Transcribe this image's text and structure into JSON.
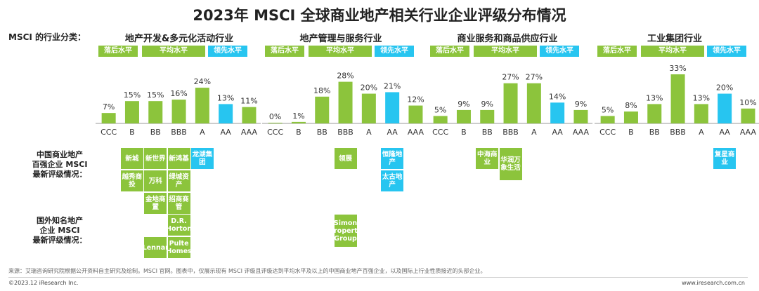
{
  "title": "2023年 MSCI 全球商业地产相关行业企业评级分布情况",
  "category_label": "MSCI 的行业分类：",
  "level_labels": {
    "lagging": "落后水平",
    "average": "平均水平",
    "leading": "领先水平"
  },
  "row_labels": {
    "china": "中国商业地产\n百强企业 MSCI\n最新评级情况：",
    "intl": "国外知名地产\n企业 MSCI\n最新评级情况："
  },
  "colors": {
    "green": "#8cc43c",
    "blue": "#27c5f0"
  },
  "chart_data": [
    {
      "type": "bar",
      "title": "地产开发&多元化活动行业",
      "categories": [
        "CCC",
        "B",
        "BB",
        "BBB",
        "A",
        "AA",
        "AAA"
      ],
      "values": [
        7,
        15,
        15,
        16,
        24,
        13,
        11
      ],
      "value_labels": [
        "7%",
        "15%",
        "15%",
        "16%",
        "24%",
        "13%",
        "11%"
      ],
      "ylim": [
        0,
        30
      ]
    },
    {
      "type": "bar",
      "title": "地产管理与服务行业",
      "categories": [
        "CCC",
        "B",
        "BB",
        "BBB",
        "A",
        "AA",
        "AAA"
      ],
      "values": [
        0,
        1,
        18,
        28,
        20,
        21,
        12
      ],
      "value_labels": [
        "0%",
        "1%",
        "18%",
        "28%",
        "20%",
        "21%",
        "12%"
      ],
      "ylim": [
        0,
        30
      ]
    },
    {
      "type": "bar",
      "title": "商业服务和商品供应行业",
      "categories": [
        "CCC",
        "B",
        "BB",
        "BBB",
        "A",
        "AA",
        "AAA"
      ],
      "values": [
        5,
        9,
        9,
        27,
        27,
        14,
        9
      ],
      "value_labels": [
        "5%",
        "9%",
        "9%",
        "27%",
        "27%",
        "14%",
        "9%"
      ],
      "ylim": [
        0,
        30
      ]
    },
    {
      "type": "bar",
      "title": "工业集团行业",
      "categories": [
        "CCC",
        "B",
        "BB",
        "BBB",
        "A",
        "AA",
        "AAA"
      ],
      "values": [
        5,
        8,
        13,
        33,
        13,
        20,
        10
      ],
      "value_labels": [
        "5%",
        "8%",
        "13%",
        "33%",
        "13%",
        "20%",
        "10%"
      ],
      "ylim": [
        0,
        33
      ]
    }
  ],
  "china_companies": [
    {
      "name": "新城",
      "panel": 0,
      "col": 1,
      "row": 0,
      "color": "green"
    },
    {
      "name": "新世界",
      "panel": 0,
      "col": 2,
      "row": 0,
      "color": "green"
    },
    {
      "name": "新鸿基",
      "panel": 0,
      "col": 3,
      "row": 0,
      "color": "green"
    },
    {
      "name": "龙湖集团",
      "panel": 0,
      "col": 4,
      "row": 0,
      "color": "blue"
    },
    {
      "name": "越秀商投",
      "panel": 0,
      "col": 1,
      "row": 1,
      "color": "green"
    },
    {
      "name": "万科",
      "panel": 0,
      "col": 2,
      "row": 1,
      "color": "green"
    },
    {
      "name": "绿城资产",
      "panel": 0,
      "col": 3,
      "row": 1,
      "color": "green"
    },
    {
      "name": "金地商置",
      "panel": 0,
      "col": 2,
      "row": 2,
      "color": "green"
    },
    {
      "name": "招商商管",
      "panel": 0,
      "col": 3,
      "row": 2,
      "color": "green"
    },
    {
      "name": "领展",
      "panel": 1,
      "col": 3,
      "row": 0,
      "color": "green"
    },
    {
      "name": "恒隆地产",
      "panel": 1,
      "col": 5,
      "row": 0,
      "color": "blue"
    },
    {
      "name": "太古地产",
      "panel": 1,
      "col": 5,
      "row": 1,
      "color": "blue"
    },
    {
      "name": "中海商业",
      "panel": 2,
      "col": 2,
      "row": 0,
      "color": "green"
    },
    {
      "name": "华润万象生活",
      "panel": 2,
      "col": 3,
      "row": 0,
      "color": "green",
      "tall": true
    },
    {
      "name": "复星商业",
      "panel": 3,
      "col": 5,
      "row": 0,
      "color": "blue"
    }
  ],
  "intl_companies": [
    {
      "name": "D.R. Horton",
      "panel": 0,
      "col": 3,
      "row": 0,
      "color": "green"
    },
    {
      "name": "Lennar",
      "panel": 0,
      "col": 2,
      "row": 1,
      "color": "green"
    },
    {
      "name": "Pulte Homes",
      "panel": 0,
      "col": 3,
      "row": 1,
      "color": "green"
    },
    {
      "name": "Simon Property Group",
      "panel": 1,
      "col": 3,
      "row": 0,
      "color": "green",
      "tall": true
    }
  ],
  "source": "来源：艾瑞咨询研究院根据公开资料自主研究及绘制。MSCI 官网。图表中，仅展示现有 MSCI 评级且评级达到平均水平及以上的中国商业地产百强企业，以及国际上行业性质接近的头部企业。",
  "footer_left": "©2023.12 iResearch Inc.",
  "footer_right": "www.iresearch.com.cn"
}
